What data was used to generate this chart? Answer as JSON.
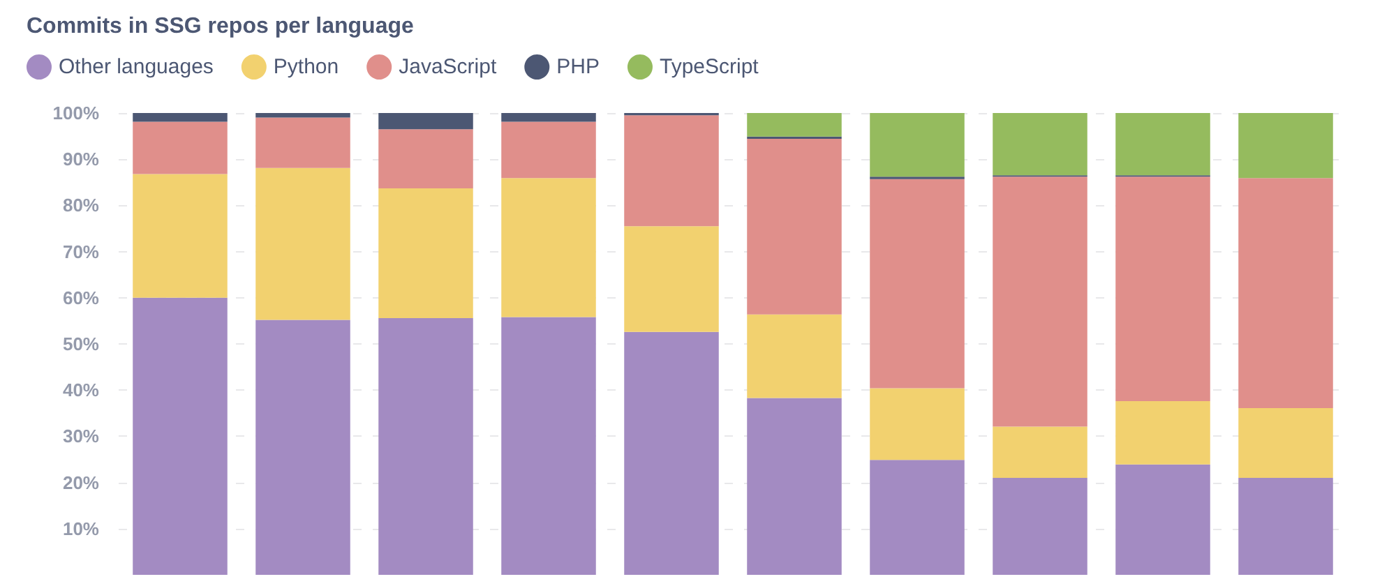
{
  "chart_data": {
    "type": "bar",
    "title": "Commits in SSG repos per language",
    "categories": [
      null,
      null,
      null,
      null,
      null,
      null,
      null,
      null,
      null,
      null
    ],
    "stacked": true,
    "series": [
      {
        "name": "Other languages",
        "color": "#a38bc2",
        "values": [
          60,
          55.2,
          55.6,
          55.8,
          52.6,
          38.3,
          24.9,
          21.0,
          23.9,
          21.0
        ]
      },
      {
        "name": "Python",
        "color": "#f2d16f",
        "values": [
          26.8,
          32.9,
          28.1,
          30.1,
          22.9,
          18.1,
          15.5,
          11.1,
          13.7,
          15.1
        ]
      },
      {
        "name": "JavaScript",
        "color": "#e08f8b",
        "values": [
          11.3,
          10.9,
          12.8,
          12.2,
          24.0,
          38.0,
          45.3,
          54.1,
          48.6,
          49.8
        ]
      },
      {
        "name": "PHP",
        "color": "#4c5773",
        "values": [
          1.9,
          1.0,
          3.5,
          1.9,
          0.5,
          0.5,
          0.5,
          0.3,
          0.3,
          0
        ]
      },
      {
        "name": "TypeScript",
        "color": "#95bb5e",
        "values": [
          0,
          0,
          0,
          0,
          0,
          5.1,
          13.8,
          13.5,
          13.5,
          14.1
        ]
      }
    ],
    "ylim": [
      0,
      100
    ],
    "yticks": [
      {
        "value": 10,
        "label": "10%"
      },
      {
        "value": 20,
        "label": "20%"
      },
      {
        "value": 30,
        "label": "30%"
      },
      {
        "value": 40,
        "label": "40%"
      },
      {
        "value": 50,
        "label": "50%"
      },
      {
        "value": 60,
        "label": "60%"
      },
      {
        "value": 70,
        "label": "70%"
      },
      {
        "value": 80,
        "label": "80%"
      },
      {
        "value": 90,
        "label": "90%"
      },
      {
        "value": 100,
        "label": "100%"
      }
    ],
    "grid": "y",
    "legend": "top left"
  }
}
